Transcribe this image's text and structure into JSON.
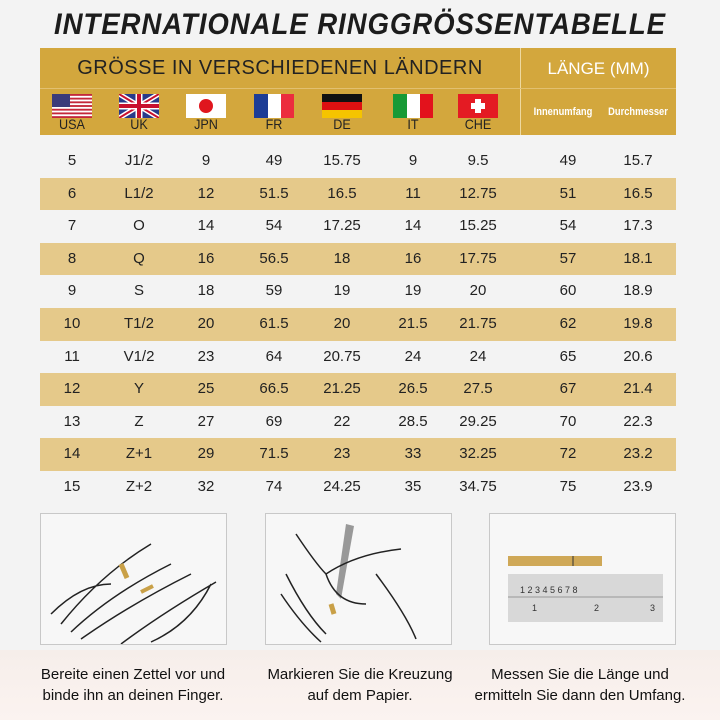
{
  "title": "INTERNATIONALE RINGGRÖSSENTABELLE",
  "header": {
    "left": "GRÖSSE IN VERSCHIEDENEN LÄNDERN",
    "right": "LÄNGE (MM)",
    "countries": [
      "USA",
      "UK",
      "JPN",
      "FR",
      "DE",
      "IT",
      "CHE"
    ],
    "flags": [
      "us-flag-icon",
      "uk-flag-icon",
      "japan-flag-icon",
      "france-flag-icon",
      "germany-flag-icon",
      "italy-flag-icon",
      "switzerland-flag-icon"
    ],
    "length_cols": [
      "Innenumfang",
      "Durchmesser"
    ]
  },
  "colors": {
    "header": "#d3a73d",
    "stripe": "#e5c98a",
    "background": "#f3f3f3"
  },
  "rows": [
    [
      "5",
      "J1/2",
      "9",
      "49",
      "15.75",
      "9",
      "9.5",
      "49",
      "15.7"
    ],
    [
      "6",
      "L1/2",
      "12",
      "51.5",
      "16.5",
      "11",
      "12.75",
      "51",
      "16.5"
    ],
    [
      "7",
      "O",
      "14",
      "54",
      "17.25",
      "14",
      "15.25",
      "54",
      "17.3"
    ],
    [
      "8",
      "Q",
      "16",
      "56.5",
      "18",
      "16",
      "17.75",
      "57",
      "18.1"
    ],
    [
      "9",
      "S",
      "18",
      "59",
      "19",
      "19",
      "20",
      "60",
      "18.9"
    ],
    [
      "10",
      "T1/2",
      "20",
      "61.5",
      "20",
      "21.5",
      "21.75",
      "62",
      "19.8"
    ],
    [
      "11",
      "V1/2",
      "23",
      "64",
      "20.75",
      "24",
      "24",
      "65",
      "20.6"
    ],
    [
      "12",
      "Y",
      "25",
      "66.5",
      "21.25",
      "26.5",
      "27.5",
      "67",
      "21.4"
    ],
    [
      "13",
      "Z",
      "27",
      "69",
      "22",
      "28.5",
      "29.25",
      "70",
      "22.3"
    ],
    [
      "14",
      "Z+1",
      "29",
      "71.5",
      "23",
      "33",
      "32.25",
      "72",
      "23.2"
    ],
    [
      "15",
      "Z+2",
      "32",
      "74",
      "24.25",
      "35",
      "34.75",
      "75",
      "23.9"
    ]
  ],
  "steps": [
    {
      "line1": "Bereite einen Zettel vor und",
      "line2": "binde ihn an deinen Finger."
    },
    {
      "line1": "Markieren Sie die Kreuzung",
      "line2": "auf dem Papier."
    },
    {
      "line1": "Messen Sie die Länge und",
      "line2": "ermitteln Sie dann den Umfang."
    }
  ],
  "ruler": {
    "top_ticks": [
      "1",
      "2",
      "3",
      "4",
      "5",
      "6",
      "7",
      "8"
    ],
    "bottom_ticks": [
      "1",
      "2",
      "3"
    ]
  }
}
